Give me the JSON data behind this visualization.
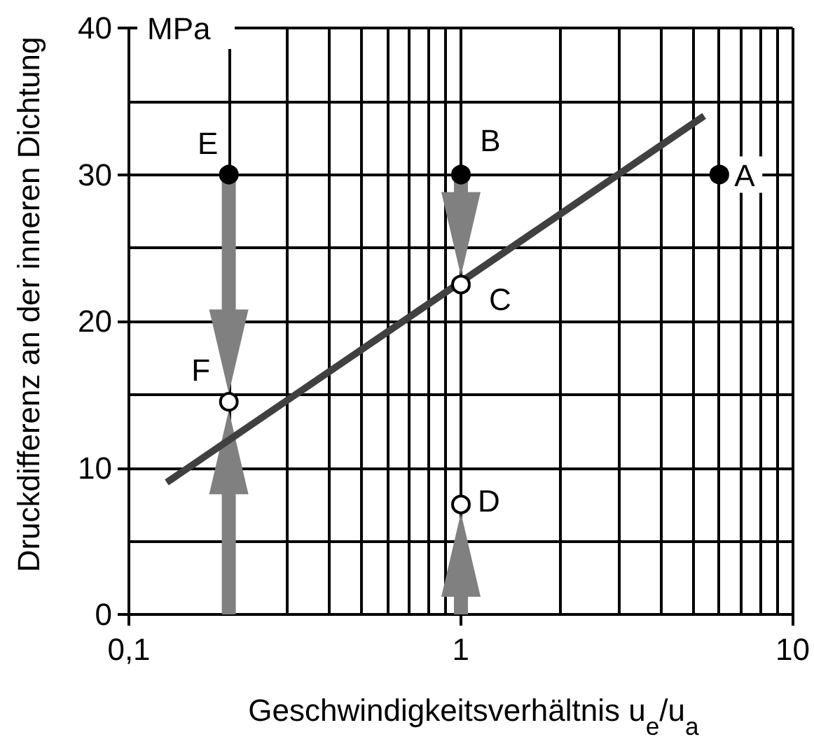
{
  "chart_data": {
    "type": "scatter",
    "xlabel": "Geschwindigkeitsverhältnis u$_{e}$/u$_{a}$",
    "ylabel": "Druckdifferenz an der inneren Dichtung",
    "series": [
      {
        "type": "line",
        "color": "#404040",
        "marker": "none",
        "x": [
          0.13,
          5.4
        ],
        "values": [
          9,
          34
        ]
      },
      {
        "color": "#000000",
        "x": [
          0.2,
          1,
          6
        ],
        "values": [
          30,
          30,
          30
        ]
      },
      {
        "color": "#ffffff",
        "x": [
          0.2,
          1,
          1
        ],
        "values": [
          14.5,
          22.5,
          7.5
        ]
      }
    ],
    "annotations": [
      {
        "text": "A",
        "x": 6,
        "y": 30
      },
      {
        "text": "B",
        "x": 1,
        "y": 30
      },
      {
        "text": "C",
        "x": 1,
        "y": 22.5
      },
      {
        "text": "D",
        "x": 1,
        "y": 7.5
      },
      {
        "text": "E",
        "x": 0.2,
        "y": 30
      },
      {
        "text": "F",
        "x": 0.2,
        "y": 14.5
      },
      "MPa"
    ],
    "log": "x",
    "xlim": [
      0.1,
      10
    ],
    "xticks": [
      {
        "value": 0.1,
        "label": "0,1"
      },
      {
        "value": 0.2,
        "label": null
      },
      {
        "value": 0.3,
        "label": null
      },
      {
        "value": 0.4,
        "label": null
      },
      {
        "value": 0.5,
        "label": null
      },
      {
        "value": 0.6,
        "label": null
      },
      {
        "value": 0.7,
        "label": null
      },
      {
        "value": 0.8,
        "label": null
      },
      {
        "value": 0.9,
        "label": null
      },
      1,
      {
        "value": 2,
        "label": null
      },
      {
        "value": 3,
        "label": null
      },
      {
        "value": 4,
        "label": null
      },
      {
        "value": 5,
        "label": null
      },
      {
        "value": 6,
        "label": null
      },
      {
        "value": 7,
        "label": null
      },
      {
        "value": 8,
        "label": null
      },
      {
        "value": 9,
        "label": null
      },
      10
    ],
    "ylim": [
      0,
      40
    ],
    "yticks": [
      0,
      {
        "value": 5,
        "label": null
      },
      10,
      {
        "value": 15,
        "label": null
      },
      20,
      {
        "value": 25,
        "label": null
      },
      30,
      {
        "value": 35,
        "label": null
      },
      40
    ],
    "grid": true,
    "marker": "circle"
  }
}
